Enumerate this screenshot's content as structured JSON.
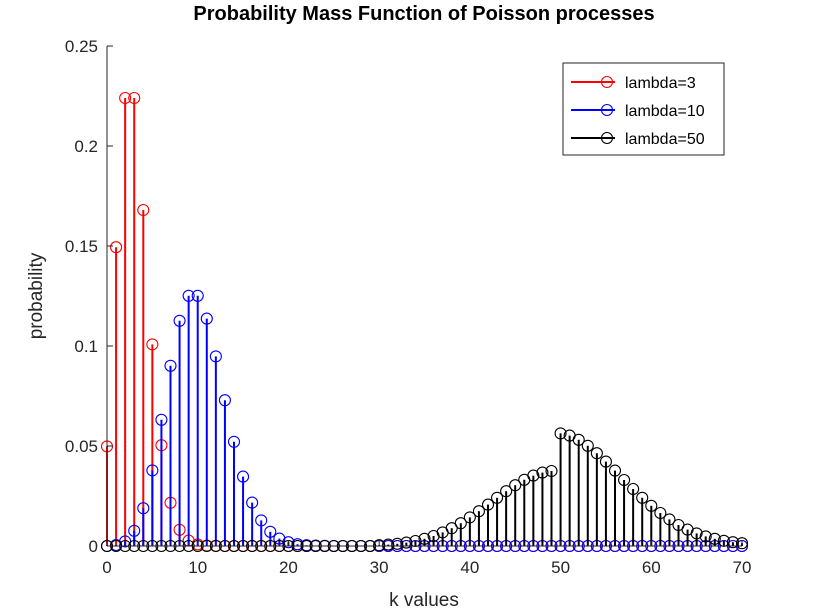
{
  "chart_data": {
    "type": "stem",
    "title": "Probability Mass Function of Poisson processes",
    "xlabel": "k values",
    "ylabel": "probability",
    "xlim": [
      0,
      70
    ],
    "ylim": [
      0,
      0.25
    ],
    "xticks": [
      "0",
      "10",
      "20",
      "30",
      "40",
      "50",
      "60",
      "70"
    ],
    "yticks": [
      "0",
      "0.05",
      "0.1",
      "0.15",
      "0.2",
      "0.25"
    ],
    "grid": false,
    "legend": "top-right",
    "x": [
      0,
      1,
      2,
      3,
      4,
      5,
      6,
      7,
      8,
      9,
      10,
      11,
      12,
      13,
      14,
      15,
      16,
      17,
      18,
      19,
      20,
      21,
      22,
      23,
      24,
      25,
      26,
      27,
      28,
      29,
      30,
      31,
      32,
      33,
      34,
      35,
      36,
      37,
      38,
      39,
      40,
      41,
      42,
      43,
      44,
      45,
      46,
      47,
      48,
      49,
      50,
      51,
      52,
      53,
      54,
      55,
      56,
      57,
      58,
      59,
      60,
      61,
      62,
      63,
      64,
      65,
      66,
      67,
      68,
      69,
      70
    ],
    "series": [
      {
        "name": "lambda=3",
        "color": "#ff0000",
        "values": [
          0.0498,
          0.1494,
          0.224,
          0.224,
          0.168,
          0.1008,
          0.0504,
          0.0216,
          0.0081,
          0.0027,
          0.0008,
          0.0002,
          0.0001,
          0,
          0,
          0,
          0,
          0,
          0,
          0,
          0,
          0,
          0,
          0,
          0,
          0,
          0,
          0,
          0,
          0,
          0,
          0,
          0,
          0,
          0,
          0,
          0,
          0,
          0,
          0,
          0,
          0,
          0,
          0,
          0,
          0,
          0,
          0,
          0,
          0,
          0,
          0,
          0,
          0,
          0,
          0,
          0,
          0,
          0,
          0,
          0,
          0,
          0,
          0,
          0,
          0,
          0,
          0,
          0,
          0,
          0
        ]
      },
      {
        "name": "lambda=10",
        "color": "#0000ff",
        "values": [
          0,
          0.0005,
          0.0023,
          0.0076,
          0.0189,
          0.0378,
          0.0631,
          0.0901,
          0.1126,
          0.1251,
          0.1251,
          0.1137,
          0.0948,
          0.0729,
          0.0521,
          0.0347,
          0.0217,
          0.0128,
          0.0071,
          0.0037,
          0.0019,
          0.0009,
          0.0004,
          0.0002,
          0.0001,
          0,
          0,
          0,
          0,
          0,
          0,
          0,
          0,
          0,
          0,
          0,
          0,
          0,
          0,
          0,
          0,
          0,
          0,
          0,
          0,
          0,
          0,
          0,
          0,
          0,
          0,
          0,
          0,
          0,
          0,
          0,
          0,
          0,
          0,
          0,
          0,
          0,
          0,
          0,
          0,
          0,
          0,
          0,
          0,
          0,
          0
        ]
      },
      {
        "name": "lambda=50",
        "color": "#000000",
        "values": [
          0,
          0,
          0,
          0,
          0,
          0,
          0,
          0,
          0,
          0,
          0,
          0,
          0,
          0,
          0,
          0,
          0,
          0,
          0,
          0,
          0,
          0,
          0,
          0,
          0,
          0,
          0,
          0,
          0,
          0,
          0.0004,
          0.0007,
          0.0011,
          0.0017,
          0.0025,
          0.0036,
          0.005,
          0.0068,
          0.0089,
          0.0114,
          0.0143,
          0.0174,
          0.0207,
          0.0241,
          0.0274,
          0.0304,
          0.0331,
          0.0352,
          0.0367,
          0.0375,
          0.0563,
          0.0552,
          0.0531,
          0.0501,
          0.0464,
          0.0422,
          0.0377,
          0.033,
          0.0285,
          0.0241,
          0.0201,
          0.0165,
          0.0133,
          0.0105,
          0.0082,
          0.0063,
          0.0048,
          0.0036,
          0.0026,
          0.0019,
          0.0014
        ]
      }
    ]
  }
}
